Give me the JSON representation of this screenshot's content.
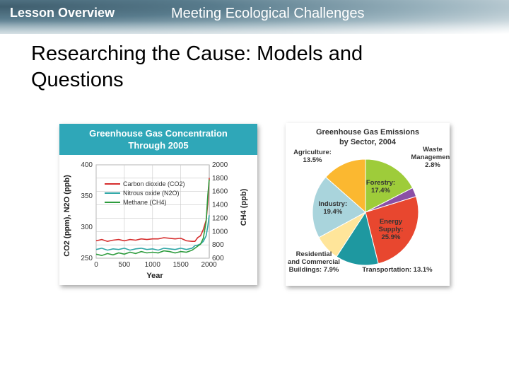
{
  "header": {
    "lesson_label": "Lesson Overview",
    "section_title": "Meeting Ecological Challenges"
  },
  "slide": {
    "title_line1": "Researching the Cause: Models and",
    "title_line2": "Questions"
  },
  "colors": {
    "header_teal": "#2fa7b8",
    "co2": "#d62e2e",
    "n2o": "#2ea6a6",
    "ch4": "#2e9c3e",
    "forestry": "#9ecc3a",
    "waste": "#8b4fa6",
    "energy": "#e8472f",
    "transportation": "#1e98a0",
    "residential": "#ffe59a",
    "industry": "#a9d4dc",
    "agriculture": "#fbb830"
  },
  "chart_data": [
    {
      "type": "line",
      "title": "Greenhouse Gas Concentration Through 2005",
      "xlabel": "Year",
      "ylabel_left": "CO2 (ppm), N2O (ppb)",
      "ylabel_right": "CH4 (ppb)",
      "x_ticks": [
        "0",
        "500",
        "1000",
        "1500",
        "2000"
      ],
      "y_left_ticks": [
        "250",
        "300",
        "350",
        "400"
      ],
      "y_right_ticks": [
        "600",
        "800",
        "1000",
        "1200",
        "1400",
        "1600",
        "1800",
        "2000"
      ],
      "xlim": [
        0,
        2005
      ],
      "ylim_left": [
        250,
        400
      ],
      "ylim_right": [
        600,
        2000
      ],
      "grid": true,
      "legend_position": "upper-left",
      "series": [
        {
          "name": "Carbon dioxide (CO2)",
          "axis": "left",
          "x": [
            0,
            100,
            200,
            300,
            400,
            500,
            600,
            700,
            800,
            900,
            1000,
            1100,
            1200,
            1300,
            1400,
            1500,
            1600,
            1700,
            1750,
            1800,
            1850,
            1900,
            1950,
            1980,
            2005
          ],
          "y": [
            278,
            280,
            277,
            279,
            280,
            278,
            280,
            279,
            281,
            280,
            281,
            281,
            283,
            282,
            281,
            282,
            278,
            277,
            277,
            283,
            286,
            296,
            311,
            339,
            379
          ]
        },
        {
          "name": "Nitrous oxide (N2O)",
          "axis": "left",
          "x": [
            0,
            100,
            200,
            300,
            400,
            500,
            600,
            700,
            800,
            900,
            1000,
            1100,
            1200,
            1300,
            1400,
            1500,
            1600,
            1700,
            1750,
            1800,
            1850,
            1900,
            1950,
            1980,
            2005
          ],
          "y": [
            264,
            266,
            263,
            265,
            264,
            266,
            263,
            265,
            266,
            264,
            265,
            263,
            266,
            265,
            264,
            266,
            264,
            266,
            270,
            271,
            273,
            277,
            286,
            302,
            319
          ]
        },
        {
          "name": "Methane (CH4)",
          "axis": "right",
          "x": [
            0,
            100,
            200,
            300,
            400,
            500,
            600,
            700,
            800,
            900,
            1000,
            1100,
            1200,
            1300,
            1400,
            1500,
            1600,
            1700,
            1750,
            1800,
            1850,
            1900,
            1950,
            1980,
            2005
          ],
          "y": [
            660,
            640,
            670,
            650,
            680,
            660,
            690,
            670,
            700,
            680,
            690,
            680,
            710,
            700,
            680,
            700,
            690,
            720,
            750,
            780,
            810,
            900,
            1150,
            1550,
            1780
          ]
        }
      ]
    },
    {
      "type": "pie",
      "title": "Greenhouse Gas Emissions by Sector, 2004",
      "slices": [
        {
          "label": "Forestry:",
          "value": 17.4,
          "value_text": "17.4%",
          "color": "#9ecc3a"
        },
        {
          "label": "Waste Management:",
          "value": 2.8,
          "value_text": "2.8%",
          "color": "#8b4fa6"
        },
        {
          "label": "Energy Supply:",
          "value": 25.9,
          "value_text": "25.9%",
          "color": "#e8472f"
        },
        {
          "label": "Transportation:",
          "value": 13.1,
          "value_text": "13.1%",
          "color": "#1e98a0"
        },
        {
          "label": "Residential and Commercial Buildings:",
          "value": 7.9,
          "value_text": "7.9%",
          "color": "#ffe59a"
        },
        {
          "label": "Industry:",
          "value": 19.4,
          "value_text": "19.4%",
          "color": "#a9d4dc"
        },
        {
          "label": "Agriculture:",
          "value": 13.5,
          "value_text": "13.5%",
          "color": "#fbb830"
        }
      ]
    }
  ]
}
